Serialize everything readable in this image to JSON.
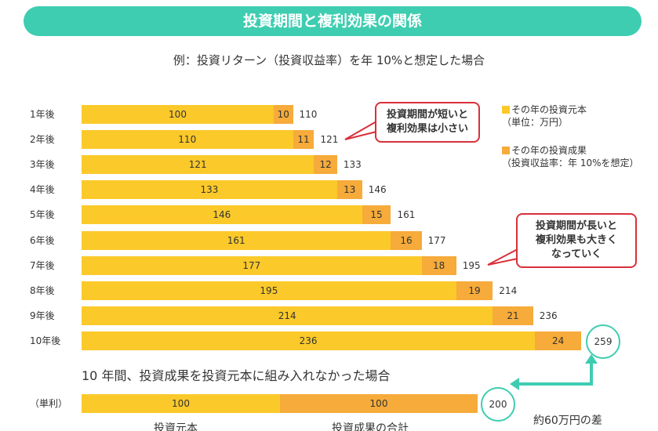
{
  "title": "投資期間と複利効果の関係",
  "subtitle": "例：投資リターン（投資収益率）を年 10%と想定した場合",
  "legend": {
    "principal": "その年の投資元本",
    "principal_note": "（単位：万円）",
    "gain": "その年の投資成果",
    "gain_note": "（投資収益率：年 10%を想定）",
    "principal_color": "#fbc92a",
    "gain_color": "#f6ab3a"
  },
  "callouts": {
    "short": [
      "投資期間が短いと",
      "複利効果は小さい"
    ],
    "long": [
      "投資期間が長いと",
      "複利効果も大きく",
      "なっていく"
    ]
  },
  "chart_data": {
    "type": "bar",
    "stacked": true,
    "orientation": "horizontal",
    "categories": [
      "1年後",
      "2年後",
      "3年後",
      "4年後",
      "5年後",
      "6年後",
      "7年後",
      "8年後",
      "9年後",
      "10年後"
    ],
    "series": [
      {
        "name": "その年の投資元本",
        "values": [
          100,
          110,
          121,
          133,
          146,
          161,
          177,
          195,
          214,
          236
        ]
      },
      {
        "name": "その年の投資成果",
        "values": [
          10,
          11,
          12,
          13,
          15,
          16,
          18,
          19,
          21,
          24
        ]
      }
    ],
    "totals": [
      "110",
      "121",
      "133",
      "146",
      "161",
      "177",
      "195",
      "214",
      "236",
      "259"
    ]
  },
  "simple": {
    "heading": "10 年間、投資成果を投資元本に組み入れなかった場合",
    "label": "（単利）",
    "principal": "100",
    "gain": "100",
    "total": "200",
    "principal_caption": "投資元本",
    "gain_caption": "投資成果の合計",
    "difference": "約60万円の差"
  }
}
